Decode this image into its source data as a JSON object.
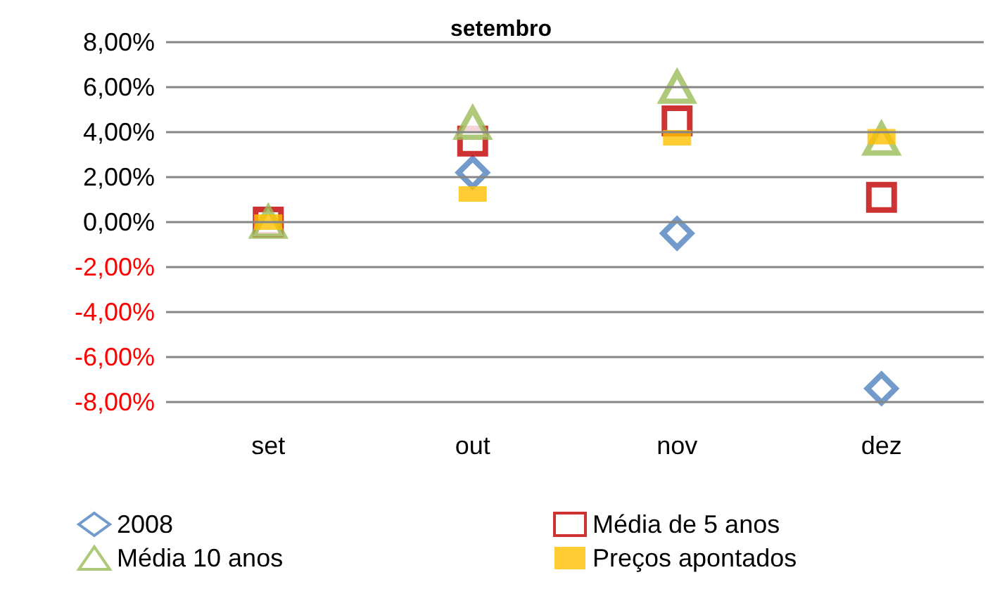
{
  "chart_data": {
    "type": "scatter",
    "title": "setembro",
    "categories": [
      "set",
      "out",
      "nov",
      "dez"
    ],
    "series": [
      {
        "name": "2008",
        "color": "#4f81bd",
        "marker": "diamond",
        "values": [
          null,
          2.2,
          -0.5,
          -7.4
        ]
      },
      {
        "name": "Média de 5 anos",
        "color": "#c00000",
        "marker": "square",
        "values": [
          0,
          3.6,
          4.5,
          1.1
        ]
      },
      {
        "name": "Média 10 anos",
        "color": "#9bbb59",
        "marker": "triangle",
        "values": [
          0,
          4.4,
          6.0,
          3.7
        ]
      },
      {
        "name": "Preços apontados",
        "color": "#ffc000",
        "marker": "square",
        "values": [
          0,
          1.25,
          3.75,
          3.8
        ]
      }
    ],
    "ylim": [
      -8,
      8
    ],
    "yticks": [
      {
        "value": -8,
        "label": "-8,00%"
      },
      {
        "value": -6,
        "label": "-6,00%"
      },
      {
        "value": -4,
        "label": "-4,00%"
      },
      {
        "value": -2,
        "label": "-2,00%"
      },
      {
        "value": 0,
        "label": "0,00%"
      },
      {
        "value": 2,
        "label": "2,00%"
      },
      {
        "value": 4,
        "label": "4,00%"
      },
      {
        "value": 6,
        "label": "6,00%"
      },
      {
        "value": 8,
        "label": "8,00%"
      }
    ],
    "grid": "y",
    "legend": "bottom"
  }
}
